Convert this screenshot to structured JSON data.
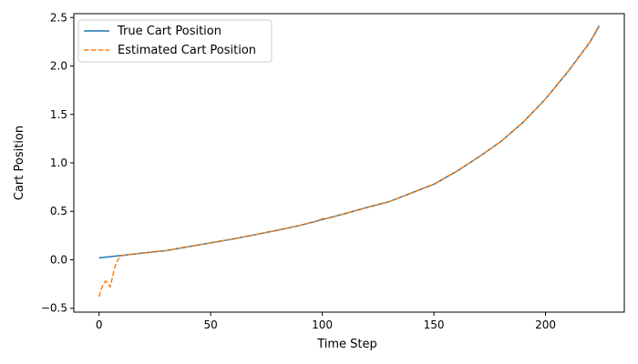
{
  "chart_data": {
    "type": "line",
    "xlabel": "Time Step",
    "ylabel": "Cart Position",
    "xlim": [
      -11.3,
      235.3
    ],
    "ylim": [
      -0.54,
      2.54
    ],
    "x_ticks": [
      0,
      50,
      100,
      150,
      200
    ],
    "y_ticks": [
      -0.5,
      0.0,
      0.5,
      1.0,
      1.5,
      2.0,
      2.5
    ],
    "y_tick_labels": [
      "−0.5",
      "0.0",
      "0.5",
      "1.0",
      "1.5",
      "2.0",
      "2.5"
    ],
    "grid": false,
    "legend": "top-left",
    "series": [
      {
        "name": "True Cart Position",
        "color": "#1f77b4",
        "style": "solid",
        "x": [
          0,
          10,
          20,
          30,
          40,
          50,
          60,
          70,
          80,
          90,
          100,
          110,
          120,
          130,
          140,
          150,
          160,
          170,
          180,
          190,
          200,
          210,
          220,
          224
        ],
        "y": [
          0.02,
          0.045,
          0.07,
          0.095,
          0.135,
          0.175,
          0.215,
          0.26,
          0.305,
          0.355,
          0.415,
          0.475,
          0.54,
          0.6,
          0.69,
          0.78,
          0.91,
          1.06,
          1.22,
          1.42,
          1.66,
          1.94,
          2.25,
          2.41
        ]
      },
      {
        "name": "Estimated Cart Position",
        "color": "#ff7f0e",
        "style": "dashed",
        "x": [
          0,
          1,
          2,
          3,
          4,
          5,
          6,
          7,
          8,
          9,
          10,
          12,
          15,
          20,
          30,
          40,
          50,
          60,
          70,
          80,
          90,
          98,
          100,
          103,
          110,
          120,
          130,
          140,
          150,
          160,
          170,
          180,
          190,
          200,
          210,
          220,
          224
        ],
        "y": [
          -0.38,
          -0.3,
          -0.25,
          -0.22,
          -0.24,
          -0.28,
          -0.18,
          -0.08,
          -0.02,
          0.02,
          0.04,
          0.05,
          0.06,
          0.07,
          0.095,
          0.135,
          0.175,
          0.215,
          0.26,
          0.305,
          0.355,
          0.4,
          0.425,
          0.43,
          0.475,
          0.54,
          0.6,
          0.69,
          0.78,
          0.91,
          1.06,
          1.22,
          1.42,
          1.66,
          1.94,
          2.25,
          2.42
        ]
      }
    ]
  }
}
